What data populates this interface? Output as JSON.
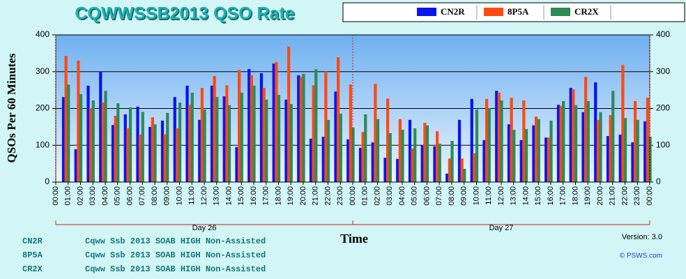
{
  "chart_data": {
    "type": "bar",
    "title": "CQWWSSB2013  QSO Rate",
    "y_label": "QSOs Per 60 Minutes",
    "x_label": "Time",
    "version": "Version: 3.0",
    "credit": "© PSWS.com",
    "x": [
      0,
      1,
      2,
      3,
      4,
      5,
      6,
      7,
      8,
      9,
      10,
      11,
      12,
      13,
      14,
      15,
      16,
      17,
      18,
      19,
      20,
      21,
      22,
      23,
      24,
      25,
      26,
      27,
      28,
      29,
      30,
      31,
      32,
      33,
      34,
      35,
      36,
      37,
      38,
      39,
      40,
      41,
      42,
      43,
      44,
      45,
      46,
      47
    ],
    "xlim": [
      0,
      48
    ],
    "xticks": [
      {
        "value": 0,
        "label": "00:00"
      },
      {
        "value": 1,
        "label": "01:00"
      },
      {
        "value": 2,
        "label": "02:00"
      },
      {
        "value": 3,
        "label": "03:00"
      },
      {
        "value": 4,
        "label": "04:00"
      },
      {
        "value": 5,
        "label": "05:00"
      },
      {
        "value": 6,
        "label": "06:00"
      },
      {
        "value": 7,
        "label": "07:00"
      },
      {
        "value": 8,
        "label": "08:00"
      },
      {
        "value": 9,
        "label": "09:00"
      },
      {
        "value": 10,
        "label": "10:00"
      },
      {
        "value": 11,
        "label": "11:00"
      },
      {
        "value": 12,
        "label": "12:00"
      },
      {
        "value": 13,
        "label": "13:00"
      },
      {
        "value": 14,
        "label": "14:00"
      },
      {
        "value": 15,
        "label": "15:00"
      },
      {
        "value": 16,
        "label": "16:00"
      },
      {
        "value": 17,
        "label": "17:00"
      },
      {
        "value": 18,
        "label": "18:00"
      },
      {
        "value": 19,
        "label": "19:00"
      },
      {
        "value": 20,
        "label": "20:00"
      },
      {
        "value": 21,
        "label": "21:00"
      },
      {
        "value": 22,
        "label": "22:00"
      },
      {
        "value": 23,
        "label": "23:00"
      },
      {
        "value": 24,
        "label": "00:00"
      },
      {
        "value": 25,
        "label": "01:00"
      },
      {
        "value": 26,
        "label": "02:00"
      },
      {
        "value": 27,
        "label": "03:00"
      },
      {
        "value": 28,
        "label": "04:00"
      },
      {
        "value": 29,
        "label": "05:00"
      },
      {
        "value": 30,
        "label": "06:00"
      },
      {
        "value": 31,
        "label": "07:00"
      },
      {
        "value": 32,
        "label": "08:00"
      },
      {
        "value": 33,
        "label": "09:00"
      },
      {
        "value": 34,
        "label": "10:00"
      },
      {
        "value": 35,
        "label": "11:00"
      },
      {
        "value": 36,
        "label": "12:00"
      },
      {
        "value": 37,
        "label": "13:00"
      },
      {
        "value": 38,
        "label": "14:00"
      },
      {
        "value": 39,
        "label": "15:00"
      },
      {
        "value": 40,
        "label": "16:00"
      },
      {
        "value": 41,
        "label": "17:00"
      },
      {
        "value": 42,
        "label": "18:00"
      },
      {
        "value": 43,
        "label": "19:00"
      },
      {
        "value": 44,
        "label": "20:00"
      },
      {
        "value": 45,
        "label": "21:00"
      },
      {
        "value": 46,
        "label": "22:00"
      },
      {
        "value": 47,
        "label": "23:00"
      },
      {
        "value": 48,
        "label": "00:00"
      }
    ],
    "day_groups": [
      {
        "label": "Day 26",
        "start": 0,
        "end": 24
      },
      {
        "label": "Day 27",
        "start": 24,
        "end": 48
      }
    ],
    "ylim": [
      0,
      400
    ],
    "yticks": [
      0,
      100,
      200,
      300,
      400
    ],
    "grid": true,
    "series": [
      {
        "name": "CN2R",
        "color": "#0a14f0",
        "description": "Cqww Ssb 2013 SOAB HIGH Non-Assisted",
        "values": [
          231,
          89,
          262,
          300,
          155,
          184,
          205,
          150,
          167,
          231,
          262,
          169,
          262,
          233,
          95,
          307,
          296,
          322,
          224,
          290,
          118,
          123,
          246,
          116,
          93,
          108,
          66,
          63,
          169,
          100,
          97,
          23,
          169,
          226,
          114,
          248,
          157,
          114,
          154,
          121,
          210,
          256,
          190,
          271,
          125,
          129,
          108,
          165
        ]
      },
      {
        "name": "8P5A",
        "color": "#ff4a12",
        "description": "Cqww Ssb 2013 SOAB HIGH Non-Assisted",
        "values": [
          343,
          330,
          201,
          216,
          180,
          146,
          129,
          176,
          130,
          146,
          210,
          256,
          288,
          263,
          305,
          290,
          256,
          326,
          368,
          286,
          263,
          300,
          339,
          265,
          136,
          267,
          227,
          171,
          91,
          161,
          138,
          64,
          64,
          78,
          226,
          243,
          229,
          222,
          178,
          121,
          207,
          252,
          286,
          169,
          182,
          318,
          220,
          229
        ]
      },
      {
        "name": "CR2X",
        "color": "#2e8b57",
        "description": "Cqww Ssb 2013 SOAB HIGH Non-Assisted",
        "values": [
          265,
          239,
          222,
          248,
          214,
          203,
          191,
          157,
          188,
          216,
          243,
          197,
          231,
          209,
          243,
          262,
          224,
          237,
          212,
          294,
          307,
          169,
          186,
          148,
          184,
          171,
          133,
          142,
          146,
          154,
          104,
          112,
          36,
          197,
          201,
          222,
          142,
          144,
          171,
          167,
          220,
          209,
          220,
          190,
          248,
          174,
          169,
          123
        ]
      }
    ]
  }
}
